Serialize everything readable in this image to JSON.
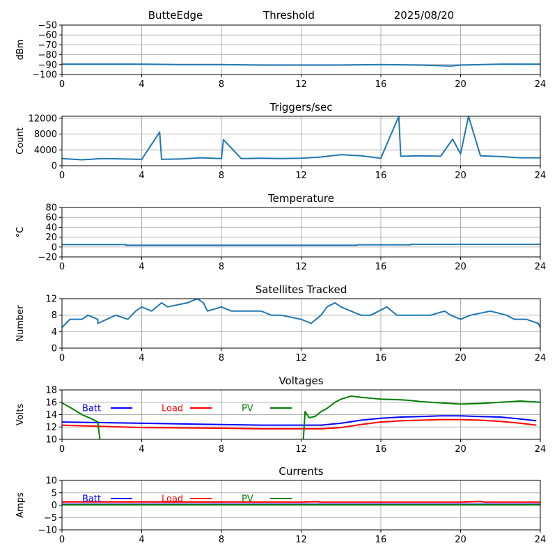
{
  "header": {
    "station": "ButteEdge",
    "mode": "Threshold",
    "date": "2025/08/20"
  },
  "colors": {
    "data": "#1f77b4",
    "grid": "#b0b0b0",
    "batt": "#0000ff",
    "load": "#ff0000",
    "pv": "#008000"
  },
  "chart_data": [
    {
      "id": "noise",
      "type": "line",
      "title": "",
      "xlabel": "",
      "ylabel": "dBm",
      "xlim": [
        0,
        24
      ],
      "ylim": [
        -100,
        -50
      ],
      "xticks": [
        0,
        4,
        8,
        12,
        16,
        20,
        24
      ],
      "yticks": [
        -100,
        -90,
        -80,
        -70,
        -60,
        -50
      ],
      "grid": true,
      "series": [
        {
          "x": [
            0,
            2,
            4,
            6,
            8,
            10,
            12,
            14,
            16,
            18,
            19.5,
            20,
            22,
            24
          ],
          "y": [
            -89.5,
            -89.5,
            -89.5,
            -90,
            -90,
            -90.5,
            -90.5,
            -90.5,
            -90,
            -90.5,
            -91.5,
            -90.5,
            -89.5,
            -89.5
          ]
        }
      ]
    },
    {
      "id": "triggers",
      "type": "line",
      "title": "Triggers/sec",
      "xlabel": "",
      "ylabel": "Count",
      "xlim": [
        0,
        24
      ],
      "ylim": [
        0,
        12500
      ],
      "xticks": [
        0,
        4,
        8,
        12,
        16,
        20,
        24
      ],
      "yticks": [
        0,
        4000,
        8000,
        12000
      ],
      "grid": true,
      "series": [
        {
          "x": [
            0,
            1,
            2,
            3,
            4,
            4.9,
            5,
            6,
            7,
            8,
            8.1,
            9,
            10,
            11,
            12,
            13,
            14,
            15,
            16,
            16.9,
            17,
            18,
            19,
            19.6,
            20,
            20.4,
            21,
            22,
            23,
            24
          ],
          "y": [
            1800,
            1500,
            1800,
            1700,
            1600,
            8500,
            1600,
            1700,
            2000,
            1800,
            6600,
            1800,
            1900,
            1800,
            1900,
            2200,
            2800,
            2500,
            1900,
            12500,
            2400,
            2500,
            2400,
            6700,
            3000,
            12500,
            2500,
            2300,
            2000,
            2000
          ]
        }
      ]
    },
    {
      "id": "temperature",
      "type": "line",
      "title": "Temperature",
      "xlabel": "",
      "ylabel": "°C",
      "xlim": [
        0,
        24
      ],
      "ylim": [
        -20,
        80
      ],
      "xticks": [
        0,
        4,
        8,
        12,
        16,
        20,
        24
      ],
      "yticks": [
        -20,
        0,
        20,
        40,
        60,
        80
      ],
      "grid": true,
      "series": [
        {
          "x": [
            0,
            3.2,
            3.2,
            14.8,
            14.8,
            17.5,
            17.5,
            24
          ],
          "y": [
            5,
            5,
            3.5,
            3.5,
            4.5,
            4.5,
            5.5,
            5.5
          ]
        }
      ]
    },
    {
      "id": "satellites",
      "type": "line",
      "title": "Satellites Tracked",
      "xlabel": "",
      "ylabel": "Number",
      "xlim": [
        0,
        24
      ],
      "ylim": [
        0,
        12
      ],
      "xticks": [
        0,
        4,
        8,
        12,
        16,
        20,
        24
      ],
      "yticks": [
        0,
        4,
        8,
        12
      ],
      "grid": true,
      "series": [
        {
          "x": [
            0,
            0.2,
            0.4,
            1,
            1.3,
            1.8,
            1.8,
            2.7,
            3.3,
            3.7,
            4,
            4.5,
            5,
            5.3,
            6.3,
            6.8,
            7.1,
            7.3,
            8,
            8.5,
            9,
            10,
            10.5,
            11,
            12,
            12.5,
            13,
            13.3,
            13.7,
            14,
            14.5,
            15,
            15.5,
            15.9,
            16.3,
            16.8,
            17.5,
            18.5,
            19.2,
            19.5,
            20,
            20.5,
            21.5,
            22.3,
            22.7,
            23.3,
            23.9,
            24
          ],
          "y": [
            5,
            6,
            7,
            7,
            8,
            7,
            6,
            8,
            7,
            9,
            10,
            9,
            11,
            10,
            11,
            12,
            11,
            9,
            10,
            9,
            9,
            9,
            8,
            8,
            7,
            6,
            8,
            10,
            11,
            10,
            9,
            8,
            8,
            9,
            10,
            8,
            8,
            8,
            9,
            8,
            7,
            8,
            9,
            8,
            7,
            7,
            6,
            5
          ]
        }
      ]
    },
    {
      "id": "voltages",
      "type": "line",
      "title": "Voltages",
      "xlabel": "",
      "ylabel": "Volts",
      "xlim": [
        0,
        24
      ],
      "ylim": [
        10,
        18
      ],
      "xticks": [
        0,
        4,
        8,
        12,
        16,
        20,
        24
      ],
      "yticks": [
        10,
        12,
        14,
        16,
        18
      ],
      "grid": true,
      "legend": "top",
      "series": [
        {
          "name": "Batt",
          "x": [
            0,
            2,
            4,
            8,
            10,
            12,
            13,
            14,
            15,
            16,
            17,
            18,
            19,
            20,
            21,
            22,
            23,
            23.8
          ],
          "y": [
            12.8,
            12.7,
            12.6,
            12.4,
            12.3,
            12.3,
            12.3,
            12.6,
            13.1,
            13.4,
            13.6,
            13.7,
            13.8,
            13.8,
            13.7,
            13.6,
            13.3,
            13.0
          ]
        },
        {
          "name": "Load",
          "x": [
            0,
            2,
            4,
            8,
            10,
            12,
            13,
            14,
            15,
            16,
            17,
            18,
            19,
            20,
            21,
            22,
            23,
            23.8
          ],
          "y": [
            12.3,
            12.1,
            11.9,
            11.8,
            11.7,
            11.7,
            11.7,
            11.9,
            12.4,
            12.8,
            13.0,
            13.1,
            13.2,
            13.2,
            13.1,
            12.9,
            12.6,
            12.3
          ]
        },
        {
          "name": "PV",
          "x": [
            0,
            0.5,
            1,
            1.5,
            1.8,
            1.9,
            2.0,
            12.1,
            12.2,
            12.4,
            12.7,
            13.0,
            13.3,
            13.7,
            14.0,
            14.5,
            15,
            16,
            17,
            17.5,
            18,
            19,
            20,
            21,
            22,
            23,
            24
          ],
          "y": [
            15.9,
            15.0,
            14.0,
            13.3,
            12.8,
            10.0,
            9.5,
            9.5,
            14.5,
            13.5,
            13.7,
            14.5,
            15.0,
            16.0,
            16.5,
            17.0,
            16.8,
            16.5,
            16.4,
            16.3,
            16.1,
            15.9,
            15.7,
            15.8,
            16.0,
            16.2,
            16.0
          ]
        }
      ]
    },
    {
      "id": "currents",
      "type": "line",
      "title": "Currents",
      "xlabel": "",
      "ylabel": "Amps",
      "xlim": [
        0,
        24
      ],
      "ylim": [
        -10,
        10
      ],
      "xticks": [
        0,
        4,
        8,
        12,
        16,
        20,
        24
      ],
      "yticks": [
        -10,
        -5,
        0,
        5,
        10
      ],
      "grid": true,
      "legend": "top",
      "series": [
        {
          "name": "Batt",
          "x": [
            0,
            24
          ],
          "y": [
            0.3,
            0.3
          ]
        },
        {
          "name": "Load",
          "x": [
            0,
            12,
            12.8,
            13,
            20,
            21,
            21.2,
            24
          ],
          "y": [
            1.3,
            1.2,
            1.4,
            1.2,
            1.2,
            1.5,
            1.2,
            1.2
          ]
        },
        {
          "name": "PV",
          "x": [
            0,
            24
          ],
          "y": [
            0.1,
            0.1
          ]
        }
      ]
    }
  ]
}
